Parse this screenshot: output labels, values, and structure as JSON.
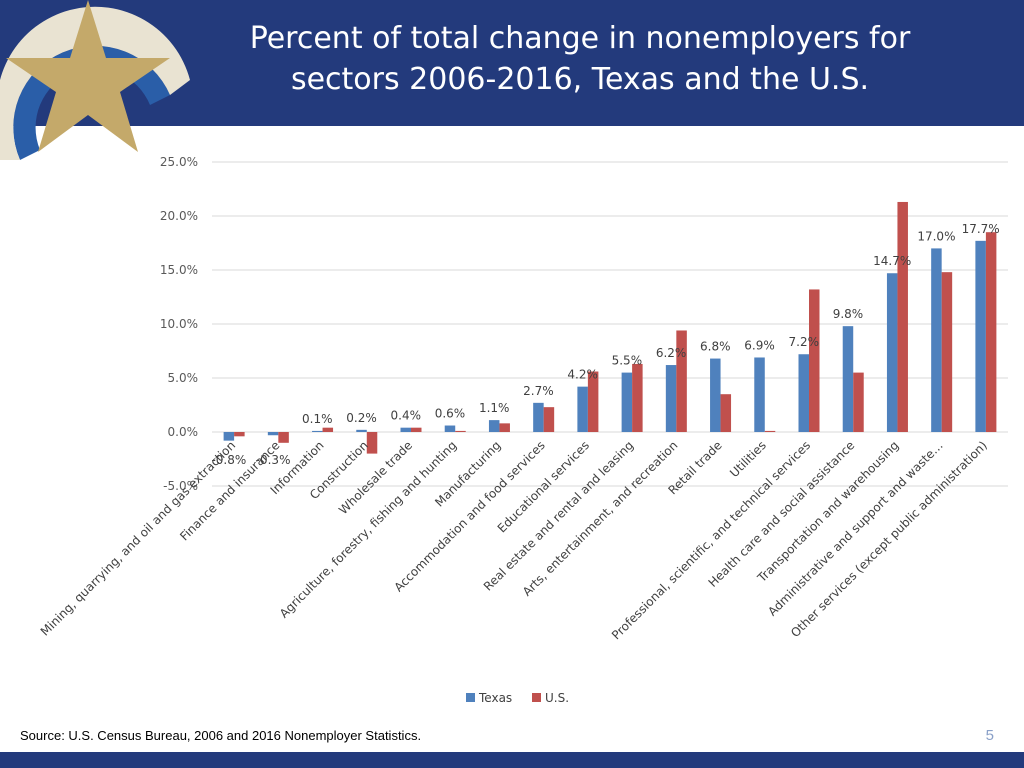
{
  "slide": {
    "title_line1": "Percent of total change in nonemployers for",
    "title_line2": "sectors 2006-2016, Texas and the U.S.",
    "source": "Source: U.S. Census Bureau, 2006 and 2016 Nonemployer Statistics.",
    "page_number": "5"
  },
  "colors": {
    "header": "#233a7c",
    "texas": "#4f81bd",
    "us": "#c0504d",
    "logo_gold": "#c4a96a",
    "logo_blue": "#2a5ea8"
  },
  "chart_data": {
    "type": "bar",
    "title": "",
    "xlabel": "",
    "ylabel": "",
    "ylim": [
      -5,
      25
    ],
    "yticks": [
      -5,
      0,
      5,
      10,
      15,
      20,
      25
    ],
    "ytick_labels": [
      "-5.0%",
      "0.0%",
      "5.0%",
      "10.0%",
      "15.0%",
      "20.0%",
      "25.0%"
    ],
    "grid": true,
    "legend_position": "bottom",
    "categories": [
      "Mining, quarrying, and oil and gas extraction",
      "Finance and insurance",
      "Information",
      "Construction",
      "Wholesale trade",
      "Agriculture, forestry, fishing and hunting",
      "Manufacturing",
      "Accommodation and food services",
      "Educational services",
      "Real estate and rental and leasing",
      "Arts, entertainment, and recreation",
      "Retail trade",
      "Utilities",
      "Professional, scientific, and technical services",
      "Health care and social assistance",
      "Transportation and warehousing",
      "Administrative and support and waste…",
      "Other services (except public administration)"
    ],
    "series": [
      {
        "name": "Texas",
        "values": [
          -0.8,
          -0.3,
          0.1,
          0.2,
          0.4,
          0.6,
          1.1,
          2.7,
          4.2,
          5.5,
          6.2,
          6.8,
          6.9,
          7.2,
          9.8,
          14.7,
          17.0,
          17.7
        ],
        "data_labels": [
          "-0.8%",
          "-0.3%",
          "0.1%",
          "0.2%",
          "0.4%",
          "0.6%",
          "1.1%",
          "2.7%",
          "4.2%",
          "5.5%",
          "6.2%",
          "6.8%",
          "6.9%",
          "7.2%",
          "9.8%",
          "14.7%",
          "17.0%",
          "17.7%"
        ]
      },
      {
        "name": "U.S.",
        "values": [
          -0.4,
          -1.0,
          0.4,
          -2.0,
          0.4,
          0.1,
          0.8,
          2.3,
          5.6,
          6.3,
          9.4,
          3.5,
          0.1,
          13.2,
          5.5,
          21.3,
          14.8,
          18.5
        ]
      }
    ]
  }
}
